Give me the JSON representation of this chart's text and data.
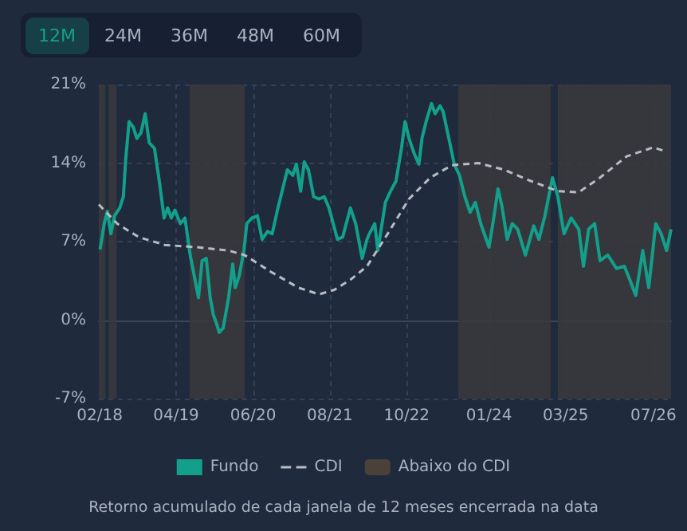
{
  "chart_data": {
    "type": "line",
    "legend": "bottom",
    "grid": true,
    "marker": "none",
    "annotations": [
      "12M",
      "24M",
      "36M",
      "48M",
      "60M",
      "Retorno acumulado de cada janela de 12 meses encerrada na data"
    ],
    "xlim": [
      "2018-01-27",
      "2026-10-07"
    ],
    "xticks": [
      {
        "value": "2018-02-01",
        "label": "02/18"
      },
      {
        "value": "2019-04-01",
        "label": "04/19"
      },
      {
        "value": "2020-06-01",
        "label": "06/20"
      },
      {
        "value": "2021-08-01",
        "label": "08/21"
      },
      {
        "value": "2022-10-01",
        "label": "10/22"
      },
      {
        "value": "2024-01-01",
        "label": "01/24"
      },
      {
        "value": "2025-03-01",
        "label": "03/25"
      },
      {
        "value": "2026-07-01",
        "label": "07/26"
      }
    ],
    "ylim": [
      -7,
      21
    ],
    "yticks": [
      {
        "value": -7,
        "label": "-7%"
      },
      {
        "value": 0,
        "label": "0%"
      },
      {
        "value": 7,
        "label": "7%"
      },
      {
        "value": 14,
        "label": "14%"
      },
      {
        "value": 21,
        "label": "21%"
      }
    ],
    "series": [
      {
        "name": "Fundo",
        "color": "#12a08c",
        "line_style": "solid",
        "x": [
          "2018-02-03",
          "2018-02-26",
          "2018-03-15",
          "2018-04-04",
          "2018-04-24",
          "2018-05-23",
          "2018-06-12",
          "2018-06-25",
          "2018-07-14",
          "2018-08-06",
          "2018-08-26",
          "2018-09-18",
          "2018-10-11",
          "2018-11-03",
          "2018-12-02",
          "2019-01-01",
          "2019-01-24",
          "2019-02-13",
          "2019-03-05",
          "2019-03-25",
          "2019-04-24",
          "2019-05-20",
          "2019-06-18",
          "2019-07-11",
          "2019-08-03",
          "2019-08-23",
          "2019-09-15",
          "2019-10-07",
          "2019-10-24",
          "2019-11-13",
          "2019-11-26",
          "2019-12-18",
          "2020-01-17",
          "2020-02-09",
          "2020-02-23",
          "2020-03-15",
          "2020-04-11",
          "2020-04-27",
          "2020-05-26",
          "2020-06-25",
          "2020-07-21",
          "2020-08-20",
          "2020-09-15",
          "2020-10-14",
          "2020-11-09",
          "2020-12-08",
          "2021-01-07",
          "2021-01-27",
          "2021-02-20",
          "2021-03-12",
          "2021-04-04",
          "2021-05-03",
          "2021-06-02",
          "2021-07-01",
          "2021-07-27",
          "2021-09-12",
          "2021-10-11",
          "2021-11-23",
          "2021-12-22",
          "2022-01-27",
          "2022-02-23",
          "2022-03-08",
          "2022-04-07",
          "2022-04-24",
          "2022-06-05",
          "2022-07-04",
          "2022-08-03",
          "2022-09-02",
          "2022-09-22",
          "2022-10-14",
          "2022-11-13",
          "2022-12-08",
          "2022-12-25",
          "2023-01-17",
          "2023-02-16",
          "2023-03-08",
          "2023-04-04",
          "2023-04-21",
          "2023-05-23",
          "2023-06-22",
          "2023-07-21",
          "2023-08-20",
          "2023-09-18",
          "2023-10-17",
          "2023-11-16",
          "2024-01-01",
          "2024-01-27",
          "2024-02-20",
          "2024-03-12",
          "2024-04-11",
          "2024-05-09",
          "2024-06-08",
          "2024-07-21",
          "2024-09-05",
          "2024-10-04",
          "2024-11-06",
          "2024-12-18",
          "2025-01-17",
          "2025-02-20",
          "2025-04-01",
          "2025-05-13",
          "2025-06-08",
          "2025-07-07",
          "2025-08-09",
          "2025-09-08",
          "2025-10-21",
          "2025-12-08",
          "2026-01-21",
          "2026-02-20",
          "2026-03-25",
          "2026-05-03",
          "2026-06-05",
          "2026-07-14",
          "2026-08-13",
          "2026-09-12",
          "2026-10-07"
        ],
        "values": [
          6.3,
          8.6,
          9.7,
          7.7,
          9.3,
          10,
          11,
          14.3,
          17.7,
          17.2,
          16.2,
          16.7,
          18.4,
          15.8,
          15.3,
          12,
          9.1,
          10,
          9.1,
          9.8,
          8.6,
          9.1,
          5.8,
          3.9,
          2,
          5.3,
          5.5,
          2,
          0.5,
          -0.4,
          -1.1,
          -0.7,
          2,
          5,
          2.9,
          3.9,
          6.2,
          8.6,
          9.1,
          9.3,
          7.2,
          7.9,
          7.7,
          9.8,
          11.5,
          13.4,
          12.9,
          13.9,
          11.5,
          14.1,
          13.4,
          11,
          10.8,
          11,
          10,
          7.2,
          7.4,
          10,
          8.6,
          5.5,
          7.2,
          7.7,
          8.6,
          6.2,
          10.5,
          11.5,
          12.4,
          15.3,
          17.7,
          16.2,
          14.8,
          13.9,
          16.2,
          17.7,
          19.3,
          18.4,
          19.1,
          18.6,
          16.2,
          13.9,
          12.9,
          11,
          9.6,
          10.5,
          8.6,
          6.5,
          9.1,
          11.7,
          10.2,
          7.2,
          8.6,
          8.1,
          5.8,
          8.4,
          7.2,
          9.3,
          12.7,
          11,
          7.7,
          9.1,
          8.1,
          4.8,
          8.1,
          8.6,
          5.3,
          5.8,
          4.6,
          4.8,
          3.6,
          2.2,
          6.2,
          2.9,
          8.6,
          7.7,
          6.2,
          8.1
        ]
      },
      {
        "name": "CDI",
        "color": "#b8bcc4",
        "line_style": "dashed",
        "x": [
          "2018-01-27",
          "2018-05-09",
          "2018-09-05",
          "2019-01-27",
          "2019-07-24",
          "2020-01-17",
          "2020-04-14",
          "2020-09-08",
          "2021-02-06",
          "2021-06-02",
          "2021-08-26",
          "2021-11-23",
          "2022-02-23",
          "2022-06-18",
          "2022-10-14",
          "2023-02-09",
          "2023-06-08",
          "2023-11-03",
          "2024-03-25",
          "2024-08-20",
          "2025-01-17",
          "2025-05-13",
          "2025-09-08",
          "2026-02-03",
          "2026-07-01",
          "2026-09-12"
        ],
        "values": [
          10.3,
          8.6,
          7.4,
          6.7,
          6.5,
          6.2,
          5.8,
          4.3,
          2.9,
          2.3,
          2.7,
          3.6,
          4.8,
          7.7,
          10.8,
          12.7,
          13.8,
          14,
          13.4,
          12.4,
          11.5,
          11.4,
          12.7,
          14.6,
          15.4,
          15
        ]
      }
    ],
    "bands": [
      {
        "axis": "x",
        "from": "2018-01-27",
        "to": "2018-03-05",
        "label": "Abaixo do CDI",
        "color": "#3a3a3c"
      },
      {
        "axis": "x",
        "from": "2018-03-22",
        "to": "2018-05-06",
        "color": "#3a3a3c"
      },
      {
        "axis": "x",
        "from": "2019-06-15",
        "to": "2020-04-17",
        "color": "#3a3a3c"
      },
      {
        "axis": "x",
        "from": "2023-07-14",
        "to": "2024-12-08",
        "color": "#3a3a3c"
      },
      {
        "axis": "x",
        "from": "2025-01-17",
        "to": "2026-10-07",
        "color": "#3a3a3c"
      }
    ]
  }
}
